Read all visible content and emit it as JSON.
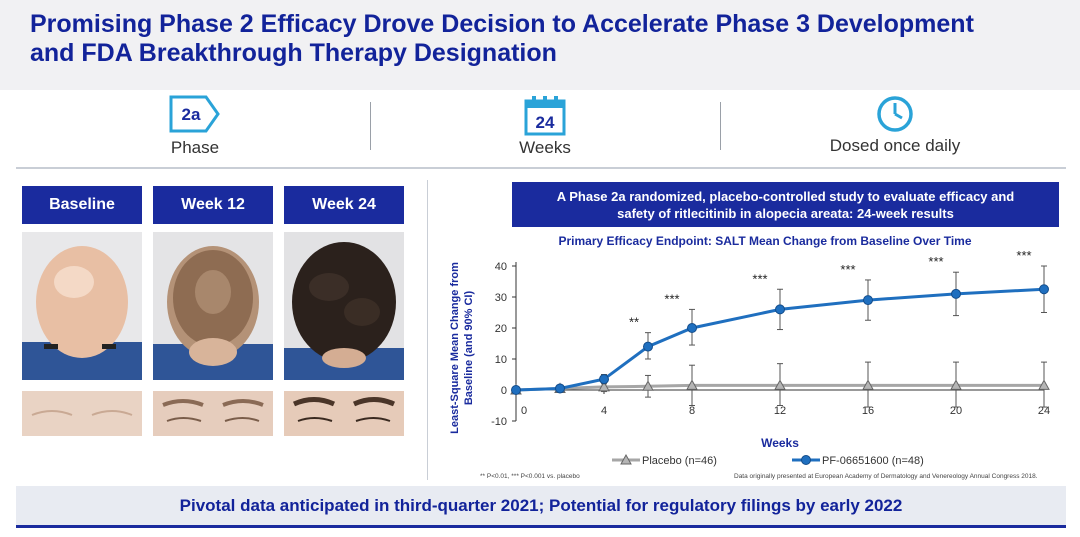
{
  "title_line1": "Promising Phase 2 Efficacy Drove Decision to Accelerate Phase 3 Development",
  "title_line2": "and FDA Breakthrough Therapy Designation",
  "stats": [
    {
      "icon": "phase-badge-icon",
      "icon_text": "2a",
      "label": "Phase"
    },
    {
      "icon": "calendar-icon",
      "icon_text": "24",
      "label": "Weeks"
    },
    {
      "icon": "clock-icon",
      "icon_text": "",
      "label": "Dosed once daily"
    }
  ],
  "photos": {
    "headers": [
      "Baseline",
      "Week 12",
      "Week 24"
    ]
  },
  "study_box": {
    "line1": "A Phase 2a randomized, placebo-controlled study to evaluate efficacy and",
    "line2": "safety of ritlecitinib in alopecia areata: 24-week results"
  },
  "chart_data": {
    "type": "line",
    "title": "Primary Efficacy Endpoint: SALT Mean Change from Baseline Over Time",
    "xlabel": "Weeks",
    "ylabel_line1": "Least-Square Mean Change from",
    "ylabel_line2": "Baseline (and 90% CI)",
    "xlim": [
      0,
      24
    ],
    "ylim": [
      -10,
      40
    ],
    "x_ticks": [
      0,
      4,
      8,
      12,
      16,
      20,
      24
    ],
    "y_ticks": [
      -10,
      0,
      10,
      20,
      30,
      40
    ],
    "legend_position": "bottom",
    "series": [
      {
        "name": "Placebo (n=46)",
        "color": "#a6a6a6",
        "marker": "triangle",
        "x": [
          0,
          2,
          4,
          6,
          8,
          12,
          16,
          20,
          24
        ],
        "y": [
          0,
          0.5,
          1,
          1.2,
          1.5,
          1.5,
          1.5,
          1.5,
          1.5
        ],
        "err_low": [
          0,
          0.5,
          1.5,
          3.5,
          6.5,
          6.5,
          7,
          7,
          7
        ],
        "err_high": [
          0,
          0.5,
          1.5,
          3.5,
          6.5,
          7,
          7.5,
          7.5,
          7.5
        ]
      },
      {
        "name": "PF-06651600 (n=48)",
        "color": "#1f6fbf",
        "marker": "circle",
        "x": [
          0,
          2,
          4,
          6,
          8,
          12,
          16,
          20,
          24
        ],
        "y": [
          0,
          0.5,
          3.5,
          14,
          20,
          26,
          29,
          31,
          32.5
        ],
        "err_low": [
          0,
          0.5,
          1.5,
          4,
          5.5,
          6.5,
          6.5,
          7,
          7.5
        ],
        "err_high": [
          0,
          0.5,
          1.5,
          4.5,
          6,
          6.5,
          6.5,
          7,
          7.5
        ]
      }
    ],
    "annotations": [
      {
        "x": 6,
        "text": "**"
      },
      {
        "x": 8,
        "text": "***"
      },
      {
        "x": 12,
        "text": "***"
      },
      {
        "x": 16,
        "text": "***"
      },
      {
        "x": 20,
        "text": "***"
      },
      {
        "x": 24,
        "text": "***"
      }
    ]
  },
  "footnote_left": "** P<0.01, *** P<0.001 vs. placebo",
  "footnote_right": "Data originally presented at European Academy of Dermatology and Venereology Annual Congress 2018.",
  "footer": "Pivotal data anticipated in third-quarter 2021; Potential for regulatory filings by early 2022"
}
